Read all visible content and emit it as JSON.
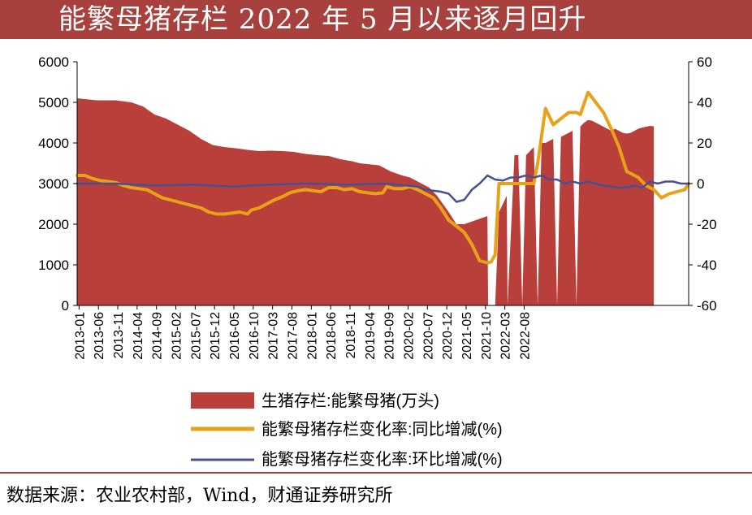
{
  "header": {
    "title": "能繁母猪存栏 2022 年 5 月以来逐月回升"
  },
  "footer": {
    "source": "数据来源：农业农村部，Wind，财通证券研究所"
  },
  "colors": {
    "title_bg": "#a8413d",
    "area": "#b9403a",
    "yoy": "#e8a21a",
    "mom": "#4a4f8f"
  },
  "chart_data": {
    "type": "area+line",
    "x_tick_labels": [
      "2013-01",
      "2013-06",
      "2013-11",
      "2014-04",
      "2014-09",
      "2015-02",
      "2015-07",
      "2015-12",
      "2016-05",
      "2016-10",
      "2017-03",
      "2017-08",
      "2018-01",
      "2018-06",
      "2018-11",
      "2019-04",
      "2019-09",
      "2020-02",
      "2020-07",
      "2020-12",
      "2021-05",
      "2021-10",
      "2022-03",
      "2022-08"
    ],
    "y_left": {
      "ylim": [
        0,
        6000
      ],
      "ticks": [
        "0",
        "1000",
        "2000",
        "3000",
        "4000",
        "5000",
        "6000"
      ]
    },
    "y_right": {
      "ylim": [
        -60,
        60
      ],
      "ticks": [
        "-60",
        "-40",
        "-20",
        "0",
        "20",
        "40",
        "60"
      ]
    },
    "legend": [
      "生猪存栏:能繁母猪(万头)",
      "能繁母猪存栏变化率:同比增减(%)",
      "能繁母猪存栏变化率:环比增减(%)"
    ],
    "series": [
      {
        "name": "生猪存栏:能繁母猪(万头)",
        "kind": "area",
        "axis": "left",
        "points": [
          [
            0,
            5100
          ],
          [
            5,
            5050
          ],
          [
            10,
            5050
          ],
          [
            14,
            5000
          ],
          [
            17,
            4900
          ],
          [
            20,
            4700
          ],
          [
            23,
            4600
          ],
          [
            26,
            4450
          ],
          [
            29,
            4300
          ],
          [
            32,
            4100
          ],
          [
            35,
            3950
          ],
          [
            38,
            3900
          ],
          [
            41,
            3870
          ],
          [
            44,
            3830
          ],
          [
            47,
            3800
          ],
          [
            50,
            3810
          ],
          [
            53,
            3800
          ],
          [
            56,
            3780
          ],
          [
            59,
            3730
          ],
          [
            62,
            3700
          ],
          [
            65,
            3680
          ],
          [
            68,
            3600
          ],
          [
            71,
            3550
          ],
          [
            73,
            3500
          ],
          [
            76,
            3470
          ],
          [
            78,
            3450
          ],
          [
            81,
            3300
          ],
          [
            84,
            3200
          ],
          [
            86,
            3150
          ],
          [
            88,
            3050
          ],
          [
            91,
            2900
          ],
          [
            93,
            2700
          ],
          [
            96,
            2300
          ],
          [
            98,
            2000
          ],
          [
            100,
            2000
          ],
          [
            103,
            2100
          ],
          [
            106,
            2200
          ],
          [
            106.2,
            0
          ],
          [
            108,
            0
          ],
          [
            109,
            2300
          ],
          [
            111,
            2700
          ],
          [
            111.2,
            0
          ],
          [
            113,
            3700
          ],
          [
            114,
            3700
          ],
          [
            115,
            0
          ],
          [
            116,
            3700
          ],
          [
            117,
            3800
          ],
          [
            118,
            3900
          ],
          [
            119,
            0
          ],
          [
            120,
            4000
          ],
          [
            121,
            4000
          ],
          [
            122,
            4050
          ],
          [
            123,
            4100
          ],
          [
            124,
            0
          ],
          [
            125,
            4150
          ],
          [
            126,
            4200
          ],
          [
            127,
            4250
          ],
          [
            128,
            4300
          ],
          [
            129,
            0
          ],
          [
            130,
            4400
          ],
          [
            131,
            4500
          ],
          [
            132,
            4564
          ],
          [
            133,
            4550
          ],
          [
            134,
            4500
          ],
          [
            135,
            4450
          ],
          [
            136,
            4400
          ],
          [
            137,
            4350
          ],
          [
            138,
            4300
          ],
          [
            139,
            4350
          ],
          [
            140,
            4300
          ],
          [
            141,
            4250
          ],
          [
            142,
            4230
          ],
          [
            143,
            4250
          ],
          [
            144,
            4300
          ],
          [
            145,
            4350
          ],
          [
            146,
            4380
          ],
          [
            147,
            4400
          ],
          [
            148,
            4420
          ],
          [
            149,
            4410
          ]
        ]
      },
      {
        "name": "能繁母猪存栏变化率:同比增减(%)",
        "kind": "line",
        "axis": "right",
        "points": [
          [
            0,
            4
          ],
          [
            2,
            4
          ],
          [
            4,
            2.5
          ],
          [
            6,
            1.5
          ],
          [
            8,
            1
          ],
          [
            10,
            0.5
          ],
          [
            12,
            -1
          ],
          [
            14,
            -2
          ],
          [
            16,
            -2.5
          ],
          [
            18,
            -3
          ],
          [
            20,
            -5
          ],
          [
            22,
            -7
          ],
          [
            24,
            -8
          ],
          [
            26,
            -9
          ],
          [
            28,
            -10
          ],
          [
            30,
            -11
          ],
          [
            32,
            -12
          ],
          [
            34,
            -14
          ],
          [
            36,
            -15
          ],
          [
            38,
            -15
          ],
          [
            40,
            -14.5
          ],
          [
            42,
            -14
          ],
          [
            44,
            -15
          ],
          [
            45,
            -13
          ],
          [
            47,
            -12
          ],
          [
            49,
            -10
          ],
          [
            51,
            -8
          ],
          [
            53,
            -6.5
          ],
          [
            55,
            -4.5
          ],
          [
            57,
            -3.5
          ],
          [
            59,
            -3
          ],
          [
            61,
            -3.5
          ],
          [
            63,
            -4
          ],
          [
            65,
            -2
          ],
          [
            67,
            -2
          ],
          [
            69,
            -3
          ],
          [
            71,
            -2.5
          ],
          [
            73,
            -4
          ],
          [
            75,
            -4.5
          ],
          [
            77,
            -5
          ],
          [
            79,
            -4.5
          ],
          [
            80,
            -1.5
          ],
          [
            82,
            -2.5
          ],
          [
            84,
            -2.5
          ],
          [
            86,
            -1.5
          ],
          [
            88,
            -3
          ],
          [
            90,
            -5
          ],
          [
            92,
            -7
          ],
          [
            94,
            -12
          ],
          [
            96,
            -18
          ],
          [
            98,
            -21
          ],
          [
            100,
            -24
          ],
          [
            102,
            -30
          ],
          [
            104,
            -38
          ],
          [
            106,
            -39
          ],
          [
            107,
            -38.5
          ],
          [
            108,
            -35
          ],
          [
            109,
            0
          ],
          [
            111,
            0
          ],
          [
            114,
            0
          ],
          [
            116,
            0
          ],
          [
            118,
            0
          ],
          [
            119,
            10
          ],
          [
            121,
            37
          ],
          [
            123,
            29
          ],
          [
            125,
            32
          ],
          [
            127,
            35
          ],
          [
            129,
            35
          ],
          [
            130,
            34
          ],
          [
            132,
            45
          ],
          [
            134,
            40
          ],
          [
            136,
            35
          ],
          [
            138,
            27
          ],
          [
            140,
            18
          ],
          [
            142,
            6
          ],
          [
            143,
            5
          ],
          [
            145,
            3
          ],
          [
            147,
            -1
          ],
          [
            149,
            -3
          ],
          [
            151,
            -7
          ],
          [
            153,
            -5
          ],
          [
            155,
            -4
          ],
          [
            157,
            -3
          ],
          [
            158,
            0
          ]
        ]
      },
      {
        "name": "能繁母猪存栏变化率:环比增减(%)",
        "kind": "line",
        "axis": "right",
        "points": [
          [
            0,
            0
          ],
          [
            10,
            0
          ],
          [
            20,
            -1
          ],
          [
            30,
            -0.5
          ],
          [
            40,
            -1.5
          ],
          [
            50,
            -0.5
          ],
          [
            60,
            0
          ],
          [
            70,
            -0.5
          ],
          [
            80,
            0
          ],
          [
            88,
            -1.5
          ],
          [
            90,
            -3
          ],
          [
            92,
            -3.5
          ],
          [
            94,
            -4
          ],
          [
            96,
            -5
          ],
          [
            98,
            -9
          ],
          [
            100,
            -8
          ],
          [
            102,
            -3
          ],
          [
            104,
            0
          ],
          [
            106,
            4
          ],
          [
            108,
            2
          ],
          [
            110,
            1.5
          ],
          [
            112,
            3
          ],
          [
            114,
            3
          ],
          [
            116,
            4
          ],
          [
            118,
            3
          ],
          [
            120,
            4
          ],
          [
            122,
            2
          ],
          [
            124,
            2
          ],
          [
            126,
            0
          ],
          [
            128,
            1
          ],
          [
            130,
            0
          ],
          [
            132,
            1
          ],
          [
            134,
            0
          ],
          [
            136,
            -1
          ],
          [
            138,
            -1.5
          ],
          [
            140,
            -2
          ],
          [
            142,
            -2
          ],
          [
            144,
            -1
          ],
          [
            146,
            -2
          ],
          [
            148,
            1
          ],
          [
            150,
            0
          ],
          [
            152,
            1
          ],
          [
            154,
            1
          ],
          [
            156,
            0
          ],
          [
            158,
            0
          ]
        ]
      }
    ]
  }
}
